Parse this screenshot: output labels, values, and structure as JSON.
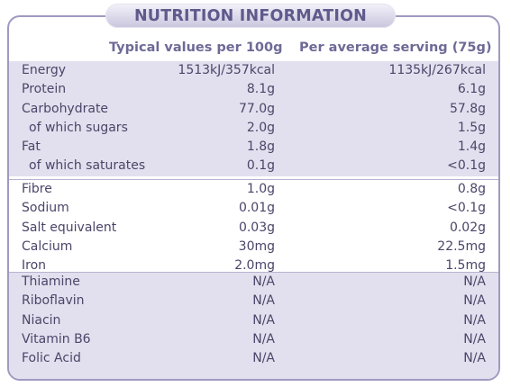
{
  "title": "NUTRITION INFORMATION",
  "headers": {
    "per100": "Typical values per 100g",
    "perServing": "Per average serving (75g)"
  },
  "groups": [
    {
      "style": "shaded",
      "rows": [
        {
          "label": "Energy",
          "per100": "1513kJ/357kcal",
          "perServing": "1135kJ/267kcal",
          "indent": false
        },
        {
          "label": "Protein",
          "per100": "8.1g",
          "perServing": "6.1g",
          "indent": false
        },
        {
          "label": "Carbohydrate",
          "per100": "77.0g",
          "perServing": "57.8g",
          "indent": false
        },
        {
          "label": "of which sugars",
          "per100": "2.0g",
          "perServing": "1.5g",
          "indent": true
        },
        {
          "label": "Fat",
          "per100": "1.8g",
          "perServing": "1.4g",
          "indent": false
        },
        {
          "label": "of which saturates",
          "per100": "0.1g",
          "perServing": "<0.1g",
          "indent": true
        }
      ]
    },
    {
      "style": "plain",
      "rows": [
        {
          "label": "Fibre",
          "per100": "1.0g",
          "perServing": "0.8g",
          "indent": false
        },
        {
          "label": "Sodium",
          "per100": "0.01g",
          "perServing": "<0.1g",
          "indent": false
        },
        {
          "label": "Salt equivalent",
          "per100": "0.03g",
          "perServing": "0.02g",
          "indent": false
        },
        {
          "label": "Calcium",
          "per100": "30mg",
          "perServing": "22.5mg",
          "indent": false
        },
        {
          "label": "Iron",
          "per100": "2.0mg",
          "perServing": "1.5mg",
          "indent": false
        }
      ]
    },
    {
      "style": "shaded",
      "rows": [
        {
          "label": "Thiamine",
          "per100": "N/A",
          "perServing": "N/A",
          "indent": false
        },
        {
          "label": "Riboflavin",
          "per100": "N/A",
          "perServing": "N/A",
          "indent": false
        },
        {
          "label": "Niacin",
          "per100": "N/A",
          "perServing": "N/A",
          "indent": false
        },
        {
          "label": "Vitamin B6",
          "per100": "N/A",
          "perServing": "N/A",
          "indent": false
        },
        {
          "label": "Folic Acid",
          "per100": "N/A",
          "perServing": "N/A",
          "indent": false
        }
      ]
    }
  ]
}
